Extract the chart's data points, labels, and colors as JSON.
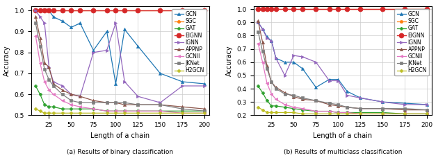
{
  "x": [
    10,
    15,
    20,
    25,
    30,
    40,
    50,
    60,
    75,
    90,
    100,
    110,
    125,
    150,
    175,
    200
  ],
  "left": {
    "GCN": [
      1.0,
      1.0,
      1.0,
      1.0,
      0.97,
      0.95,
      0.92,
      0.94,
      0.81,
      0.9,
      0.65,
      0.91,
      0.83,
      0.7,
      0.66,
      0.65
    ],
    "SGC": [
      1.0,
      1.0,
      1.0,
      1.0,
      1.0,
      1.0,
      1.0,
      1.0,
      1.0,
      1.0,
      1.0,
      1.0,
      1.0,
      1.0,
      1.0,
      1.0
    ],
    "GAT": [
      0.64,
      0.6,
      0.55,
      0.54,
      0.54,
      0.53,
      0.53,
      0.53,
      0.53,
      0.52,
      0.52,
      0.52,
      0.52,
      0.52,
      0.52,
      0.52
    ],
    "EIGNN": [
      1.0,
      1.0,
      1.0,
      1.0,
      1.0,
      1.0,
      1.0,
      1.0,
      1.0,
      1.0,
      1.0,
      1.0,
      1.0,
      1.0,
      1.0,
      1.0
    ],
    "IGNN": [
      1.0,
      0.97,
      0.94,
      0.73,
      0.66,
      0.64,
      0.6,
      0.59,
      0.8,
      0.81,
      0.94,
      0.66,
      0.59,
      0.56,
      0.64,
      0.64
    ],
    "APPNP": [
      0.97,
      0.87,
      0.75,
      0.73,
      0.65,
      0.62,
      0.6,
      0.59,
      0.57,
      0.56,
      0.56,
      0.55,
      0.55,
      0.55,
      0.54,
      0.53
    ],
    "GCNII": [
      0.88,
      0.75,
      0.66,
      0.62,
      0.6,
      0.57,
      0.55,
      0.54,
      0.53,
      0.52,
      0.52,
      0.52,
      0.52,
      0.52,
      0.51,
      0.51
    ],
    "JKNet": [
      0.94,
      0.83,
      0.72,
      0.67,
      0.64,
      0.6,
      0.57,
      0.56,
      0.56,
      0.56,
      0.56,
      0.56,
      0.55,
      0.55,
      0.53,
      0.52
    ],
    "H2GCN": [
      0.53,
      0.52,
      0.51,
      0.51,
      0.51,
      0.51,
      0.51,
      0.51,
      0.51,
      0.51,
      0.51,
      0.51,
      0.51,
      0.51,
      0.51,
      0.51
    ]
  },
  "right": {
    "GCN": [
      0.9,
      0.85,
      0.79,
      0.76,
      0.63,
      0.6,
      0.6,
      0.55,
      0.41,
      0.47,
      0.47,
      0.38,
      0.33,
      0.3,
      0.29,
      0.28
    ],
    "SGC": [
      1.0,
      1.0,
      1.0,
      1.0,
      1.0,
      1.0,
      1.0,
      1.0,
      1.0,
      1.0,
      1.0,
      1.0,
      1.0,
      1.0,
      1.0,
      1.0
    ],
    "GAT": [
      0.42,
      0.37,
      0.31,
      0.27,
      0.27,
      0.26,
      0.25,
      0.24,
      0.23,
      0.23,
      0.22,
      0.22,
      0.22,
      0.22,
      0.21,
      0.21
    ],
    "EIGNN": [
      1.0,
      1.0,
      1.0,
      1.0,
      1.0,
      1.0,
      1.0,
      1.0,
      1.0,
      1.0,
      1.0,
      1.0,
      1.0,
      1.0,
      1.0,
      1.0
    ],
    "IGNN": [
      0.9,
      0.85,
      0.78,
      0.76,
      0.63,
      0.5,
      0.65,
      0.64,
      0.6,
      0.46,
      0.46,
      0.35,
      0.33,
      0.3,
      0.28,
      0.28
    ],
    "APPNP": [
      0.91,
      0.75,
      0.57,
      0.45,
      0.41,
      0.37,
      0.34,
      0.32,
      0.31,
      0.28,
      0.27,
      0.26,
      0.25,
      0.25,
      0.24,
      0.24
    ],
    "GCNII": [
      0.74,
      0.6,
      0.44,
      0.36,
      0.32,
      0.28,
      0.26,
      0.25,
      0.23,
      0.23,
      0.22,
      0.22,
      0.21,
      0.21,
      0.21,
      0.21
    ],
    "JKNet": [
      0.83,
      0.68,
      0.55,
      0.45,
      0.4,
      0.36,
      0.35,
      0.33,
      0.31,
      0.29,
      0.28,
      0.26,
      0.25,
      0.25,
      0.25,
      0.24
    ],
    "H2GCN": [
      0.26,
      0.24,
      0.22,
      0.22,
      0.22,
      0.22,
      0.22,
      0.21,
      0.21,
      0.21,
      0.21,
      0.21,
      0.21,
      0.21,
      0.21,
      0.21
    ]
  },
  "colors": {
    "GCN": "#1f77b4",
    "SGC": "#ff7f0e",
    "GAT": "#2ca02c",
    "EIGNN": "#d62728",
    "IGNN": "#9467bd",
    "APPNP": "#8c564b",
    "GCNII": "#e377c2",
    "JKNet": "#7f7f7f",
    "H2GCN": "#bcbd22"
  },
  "markers": {
    "GCN": "^",
    "SGC": "o",
    "GAT": "P",
    "EIGNN": "o",
    "IGNN": ">",
    "APPNP": "^",
    "GCNII": "<",
    "JKNet": "s",
    "H2GCN": "P"
  },
  "xlabel": "Length of a chain",
  "ylabel": "Accuracy",
  "caption_left": "(a) Results of binary classification",
  "caption_right": "(b) Results of multiclass classification",
  "x_ticks": [
    25,
    50,
    75,
    100,
    125,
    150,
    175,
    200
  ],
  "left_ylim": [
    0.5,
    1.02
  ],
  "right_ylim": [
    0.2,
    1.02
  ],
  "left_yticks": [
    0.5,
    0.6,
    0.7,
    0.8,
    0.9,
    1.0
  ],
  "right_yticks": [
    0.2,
    0.3,
    0.4,
    0.5,
    0.6,
    0.7,
    0.8,
    0.9,
    1.0
  ]
}
